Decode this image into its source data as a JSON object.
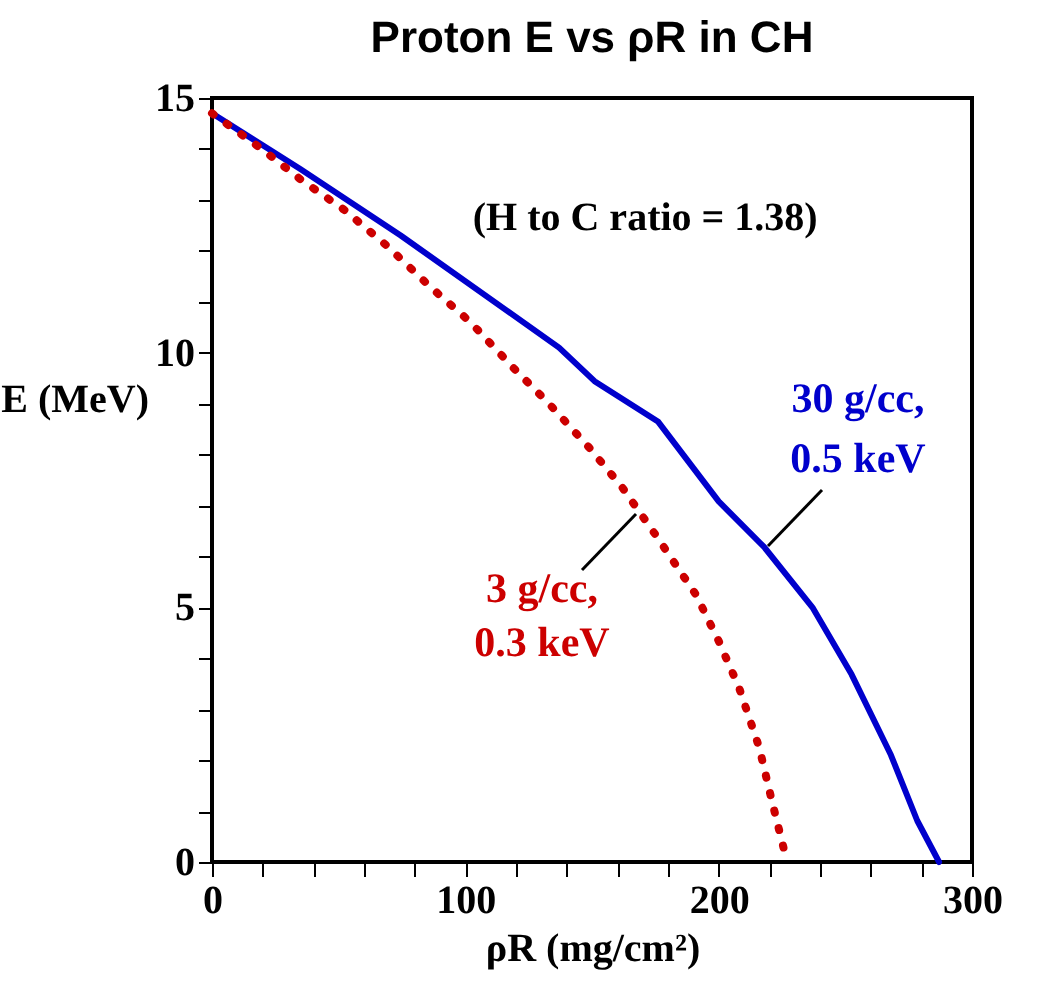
{
  "chart_data": {
    "type": "line",
    "title": "Proton E vs ρR in CH",
    "xlabel": "ρR (mg/cm²)",
    "ylabel": "E (MeV)",
    "annotations": [
      "(H to C ratio = 1.38)"
    ],
    "series": [
      {
        "name": "30 g/cc,\n0.5 keV",
        "color": "#0000cc",
        "line_style": "solid",
        "x": [
          0,
          35,
          74.5,
          137,
          151,
          176,
          200,
          218,
          237,
          252.5,
          268,
          278.4,
          287
        ],
        "values": [
          14.7,
          13.6,
          12.3,
          10.1,
          9.44,
          8.65,
          7.08,
          6.18,
          5.0,
          3.68,
          2.1,
          0.81,
          0
        ]
      },
      {
        "name": "3 g/cc,\n0.3 keV",
        "color": "#cc0000",
        "line_style": "dotted",
        "x": [
          0,
          19.6,
          35,
          52.3,
          69,
          86,
          102,
          119,
          133,
          149,
          162,
          175,
          191,
          200,
          208,
          216,
          221,
          227
        ],
        "values": [
          14.7,
          14.0,
          13.4,
          12.8,
          12.1,
          11.3,
          10.6,
          9.7,
          9.0,
          8.13,
          7.35,
          6.43,
          5.25,
          4.34,
          3.43,
          2.25,
          1.2,
          0
        ]
      }
    ],
    "xlim": [
      0,
      300
    ],
    "ylim": [
      0,
      15
    ],
    "xticks": [
      0,
      {
        "value": 20,
        "label": null
      },
      {
        "value": 40,
        "label": null
      },
      {
        "value": 60,
        "label": null
      },
      {
        "value": 80,
        "label": null
      },
      100,
      {
        "value": 120,
        "label": null
      },
      {
        "value": 140,
        "label": null
      },
      {
        "value": 160,
        "label": null
      },
      {
        "value": 180,
        "label": null
      },
      200,
      {
        "value": 220,
        "label": null
      },
      {
        "value": 240,
        "label": null
      },
      {
        "value": 260,
        "label": null
      },
      {
        "value": 280,
        "label": null
      },
      300
    ],
    "yticks": [
      0,
      {
        "value": 1,
        "label": null
      },
      {
        "value": 2,
        "label": null
      },
      {
        "value": 3,
        "label": null
      },
      {
        "value": 4,
        "label": null
      },
      5,
      {
        "value": 6,
        "label": null
      },
      {
        "value": 7,
        "label": null
      },
      {
        "value": 8,
        "label": null
      },
      {
        "value": 9,
        "label": null
      },
      10,
      {
        "value": 11,
        "label": null
      },
      {
        "value": 12,
        "label": null
      },
      {
        "value": 13,
        "label": null
      },
      {
        "value": 14,
        "label": null
      },
      15
    ],
    "grid": false
  }
}
